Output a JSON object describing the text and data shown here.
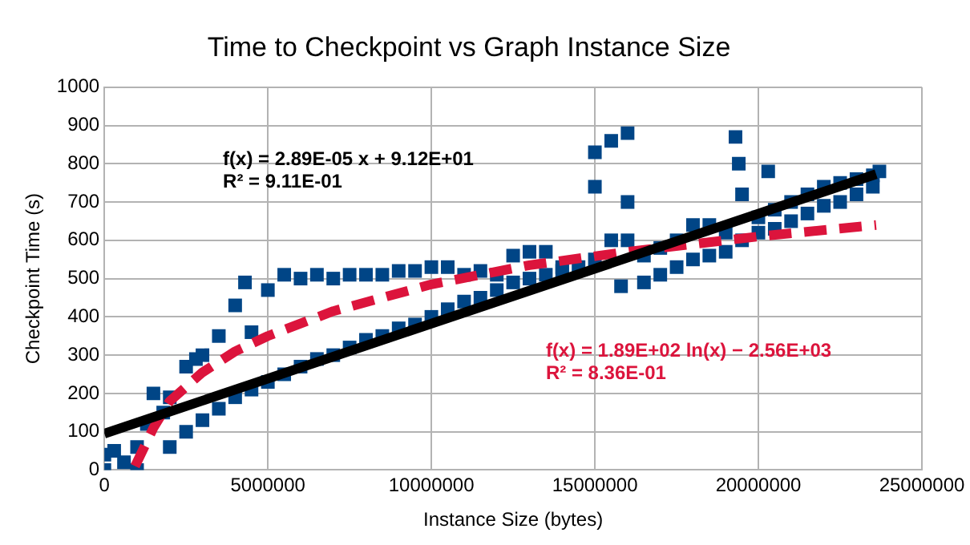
{
  "chart_data": {
    "type": "scatter",
    "title": "Time to Checkpoint vs Graph Instance Size",
    "xlabel": "Instance Size (bytes)",
    "ylabel": "Checkpoint Time (s)",
    "xlim": [
      0,
      25000000
    ],
    "xticks": [
      0,
      5000000,
      10000000,
      15000000,
      20000000,
      25000000
    ],
    "ylim": [
      0,
      1000
    ],
    "yticks": [
      0,
      100,
      200,
      300,
      400,
      500,
      600,
      700,
      800,
      900,
      1000
    ],
    "grid": true,
    "legend": false,
    "annotations": [
      "f(x) = 2.89E-05 x + 9.12E+01\nR² = 9.11E-01",
      "f(x) = 1.89E+02 ln(x) − 2.56E+03\nR² = 8.36E-01"
    ],
    "series": [
      {
        "color": "#004586",
        "marker": "square",
        "x": [
          0,
          0,
          300000,
          600000,
          1000000,
          1000000,
          1300000,
          1500000,
          1800000,
          2000000,
          2000000,
          2500000,
          2500000,
          2800000,
          3000000,
          3000000,
          3500000,
          3500000,
          4000000,
          4000000,
          4300000,
          4500000,
          4500000,
          5000000,
          5000000,
          5500000,
          5500000,
          6000000,
          6000000,
          6500000,
          6500000,
          7000000,
          7000000,
          7500000,
          7500000,
          8000000,
          8000000,
          8500000,
          8500000,
          9000000,
          9000000,
          9500000,
          9500000,
          10000000,
          10000000,
          10500000,
          10500000,
          11000000,
          11000000,
          11500000,
          11500000,
          12000000,
          12000000,
          12500000,
          12500000,
          13000000,
          13000000,
          13500000,
          13500000,
          14000000,
          14000000,
          14500000,
          15000000,
          15000000,
          15000000,
          15500000,
          15500000,
          16000000,
          16000000,
          16000000,
          15800000,
          16500000,
          16500000,
          17000000,
          17000000,
          17500000,
          17500000,
          18000000,
          18000000,
          18500000,
          18500000,
          19000000,
          19000000,
          19300000,
          19400000,
          19500000,
          19500000,
          20000000,
          20000000,
          20300000,
          20500000,
          20500000,
          21000000,
          21000000,
          21500000,
          21500000,
          22000000,
          22000000,
          22500000,
          22500000,
          23000000,
          23000000,
          23500000,
          23500000,
          23700000
        ],
        "values": [
          0,
          40,
          50,
          20,
          0,
          60,
          120,
          200,
          150,
          60,
          190,
          100,
          270,
          290,
          130,
          300,
          160,
          350,
          190,
          430,
          490,
          360,
          210,
          230,
          470,
          250,
          510,
          270,
          500,
          290,
          510,
          300,
          500,
          320,
          510,
          340,
          510,
          350,
          510,
          370,
          520,
          380,
          520,
          400,
          530,
          420,
          530,
          440,
          510,
          450,
          520,
          470,
          510,
          490,
          560,
          500,
          570,
          510,
          570,
          520,
          530,
          530,
          550,
          740,
          830,
          600,
          860,
          880,
          700,
          600,
          480,
          490,
          560,
          510,
          580,
          530,
          600,
          550,
          640,
          560,
          640,
          570,
          620,
          870,
          800,
          720,
          600,
          620,
          660,
          780,
          630,
          680,
          650,
          700,
          670,
          720,
          690,
          740,
          700,
          750,
          720,
          760,
          740,
          770,
          780
        ]
      },
      {
        "type": "line",
        "color": "#000000",
        "marker": "none",
        "line_style": "solid",
        "x": [
          0,
          23600000
        ],
        "values": [
          95,
          773
        ]
      },
      {
        "type": "line",
        "color": "#dc143c",
        "marker": "none",
        "line_style": "dashed",
        "x": [
          940000,
          1500000,
          2000000,
          3000000,
          4000000,
          5000000,
          7000000,
          10000000,
          13000000,
          16000000,
          20000000,
          23600000
        ],
        "values": [
          10,
          110,
          180,
          255,
          310,
          350,
          415,
          485,
          535,
          570,
          610,
          640
        ]
      }
    ]
  }
}
